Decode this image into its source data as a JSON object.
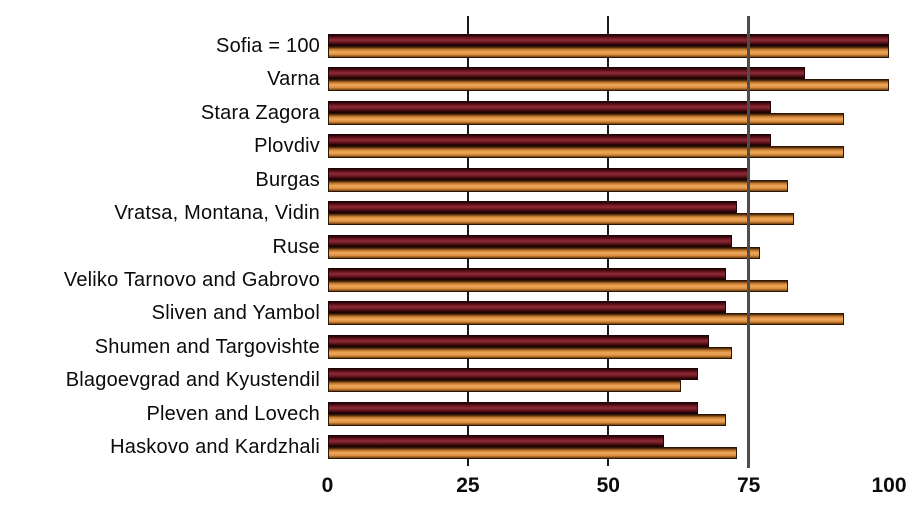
{
  "chart_data": {
    "type": "bar",
    "orientation": "horizontal",
    "title": "",
    "xlabel": "",
    "ylabel": "",
    "xlim": [
      0,
      100
    ],
    "x_ticks": [
      "0",
      "25",
      "50",
      "75",
      "100"
    ],
    "x_tick_values": [
      0,
      25,
      50,
      75,
      100
    ],
    "gridline_values": [
      25,
      50
    ],
    "reference_line_value": 75,
    "legend": "none",
    "categories": [
      "Sofia = 100",
      "Varna",
      "Stara Zagora",
      "Plovdiv",
      "Burgas",
      "Vratsa, Montana, Vidin",
      "Ruse",
      "Veliko Tarnovo and Gabrovo",
      "Sliven and Yambol",
      "Shumen and Targovishte",
      "Blagoevgrad and Kyustendil",
      "Pleven and Lovech",
      "Haskovo and Kardzhali"
    ],
    "series": [
      {
        "name": "dark-red-series",
        "color": "#7d2430",
        "values": [
          100,
          85,
          79,
          79,
          75,
          73,
          72,
          71,
          71,
          68,
          66,
          66,
          60
        ]
      },
      {
        "name": "orange-series",
        "color": "#e89a44",
        "values": [
          100,
          100,
          92,
          92,
          82,
          83,
          77,
          82,
          92,
          72,
          63,
          71,
          73
        ]
      }
    ]
  },
  "colors": {
    "background": "#ffffff",
    "gridline": "#1a1a1a",
    "reference_line": "#4d4d4d",
    "text": "#0b0b0b"
  }
}
